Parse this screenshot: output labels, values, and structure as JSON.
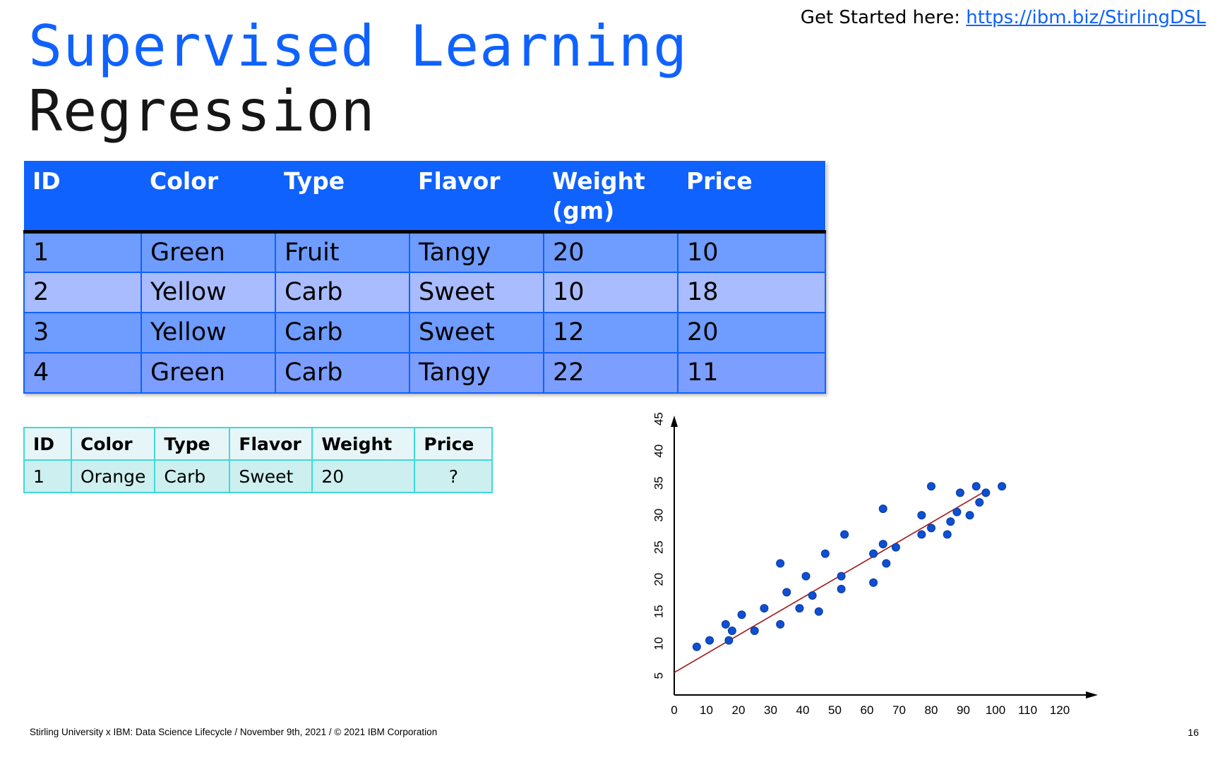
{
  "title": {
    "line1": "Supervised Learning",
    "line2": "Regression"
  },
  "get_started": {
    "label": "Get Started here:",
    "link": "https://ibm.biz/StirlingDSL"
  },
  "main_table": {
    "headers": [
      "ID",
      "Color",
      "Type",
      "Flavor",
      "Weight (gm)",
      "Price"
    ],
    "rows": [
      [
        "1",
        "Green",
        "Fruit",
        "Tangy",
        "20",
        "10"
      ],
      [
        "2",
        "Yellow",
        "Carb",
        "Sweet",
        "10",
        "18"
      ],
      [
        "3",
        "Yellow",
        "Carb",
        "Sweet",
        "12",
        "20"
      ],
      [
        "4",
        "Green",
        "Carb",
        "Tangy",
        "22",
        "11"
      ]
    ]
  },
  "query_table": {
    "headers": [
      "ID",
      "Color",
      "Type",
      "Flavor",
      "Weight",
      "Price"
    ],
    "row": [
      "1",
      "Orange",
      "Carb",
      "Sweet",
      "20",
      "?"
    ]
  },
  "chart_data": {
    "type": "scatter",
    "x_ticks": [
      "0",
      "10",
      "20",
      "30",
      "40",
      "50",
      "60",
      "70",
      "80",
      "90",
      "100",
      "110",
      "120"
    ],
    "y_ticks": [
      "5",
      "10",
      "15",
      "20",
      "25",
      "30",
      "35",
      "40",
      "45"
    ],
    "xlim": [
      0,
      130
    ],
    "ylim": [
      2,
      45
    ],
    "points": [
      [
        7,
        9.5
      ],
      [
        11,
        10.5
      ],
      [
        16,
        13
      ],
      [
        17,
        10.5
      ],
      [
        18,
        12
      ],
      [
        21,
        14.5
      ],
      [
        25,
        12
      ],
      [
        28,
        15.5
      ],
      [
        33,
        13
      ],
      [
        33,
        22.5
      ],
      [
        35,
        18
      ],
      [
        39,
        15.5
      ],
      [
        41,
        20.5
      ],
      [
        43,
        17.5
      ],
      [
        45,
        15
      ],
      [
        47,
        24
      ],
      [
        52,
        18.5
      ],
      [
        52,
        20.5
      ],
      [
        53,
        27
      ],
      [
        62,
        24
      ],
      [
        62,
        19.5
      ],
      [
        65,
        31
      ],
      [
        65,
        25.5
      ],
      [
        66,
        22.5
      ],
      [
        69,
        25
      ],
      [
        77,
        27
      ],
      [
        77,
        30
      ],
      [
        80,
        28
      ],
      [
        80,
        34.5
      ],
      [
        85,
        27
      ],
      [
        86,
        29
      ],
      [
        88,
        30.5
      ],
      [
        89,
        33.5
      ],
      [
        92,
        30
      ],
      [
        94,
        34.5
      ],
      [
        95,
        32
      ],
      [
        97,
        33.5
      ],
      [
        102,
        34.5
      ]
    ],
    "fit_line": {
      "x": [
        0,
        96
      ],
      "y": [
        5.5,
        33.5
      ]
    },
    "colors": {
      "points": "#0f4fd1",
      "line": "#a01818",
      "axis": "#000000"
    },
    "grid": false
  },
  "footer": "Stirling University x IBM: Data Science Lifecycle / November 9th, 2021 / © 2021 IBM Corporation",
  "page_number": "16"
}
